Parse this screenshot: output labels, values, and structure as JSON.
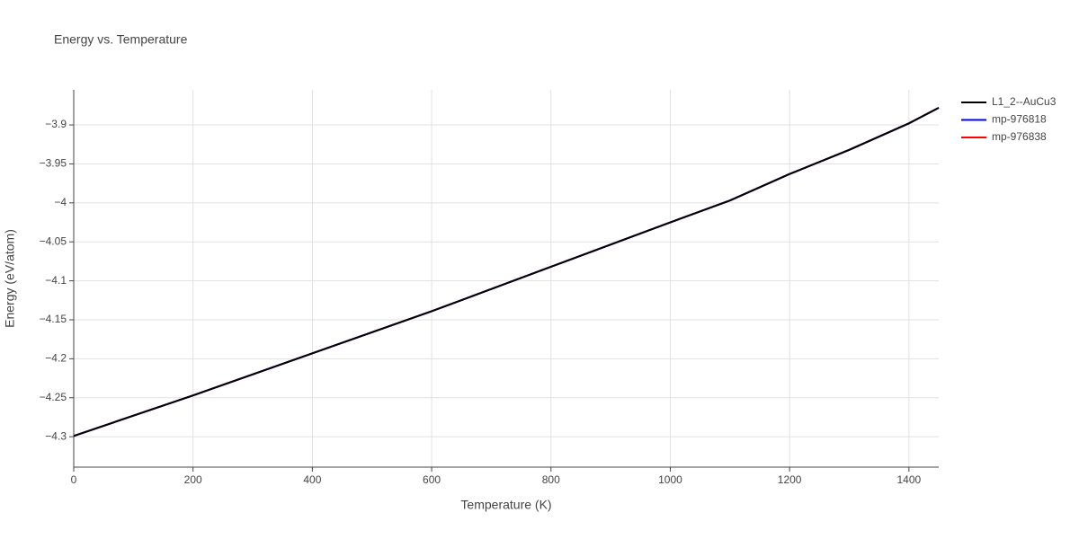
{
  "chart_data": {
    "type": "line",
    "title": "Energy vs. Temperature",
    "x_label": "Temperature (K)",
    "y_label": "Energy (eV/atom)",
    "x": [
      0,
      200,
      400,
      600,
      800,
      1000,
      1100,
      1200,
      1300,
      1400,
      1450
    ],
    "series": [
      {
        "name": "L1_2--AuCu3",
        "color": "#000000",
        "values": [
          -4.299,
          -4.247,
          -4.193,
          -4.139,
          -4.082,
          -4.025,
          -3.997,
          -3.963,
          -3.932,
          -3.898,
          -3.878
        ]
      },
      {
        "name": "mp-976818",
        "color": "#0000ff",
        "values": [
          -4.299,
          -4.247,
          -4.193,
          -4.139,
          -4.082,
          -4.025,
          -3.997,
          -3.963,
          -3.932,
          -3.898,
          -3.878
        ]
      },
      {
        "name": "mp-976838",
        "color": "#ff0000",
        "values": [
          -4.299,
          -4.247,
          -4.193,
          -4.139,
          -4.082,
          -4.025,
          -3.997,
          -3.963,
          -3.932,
          -3.898,
          -3.878
        ]
      }
    ],
    "xlim": [
      0,
      1450
    ],
    "xticks": [
      0,
      200,
      400,
      600,
      800,
      1000,
      1200,
      1400
    ],
    "ylim": [
      -4.339,
      -3.855
    ],
    "yticks": [
      {
        "value": -4.3,
        "label": "−4.3"
      },
      {
        "value": -4.25,
        "label": "−4.25"
      },
      {
        "value": -4.2,
        "label": "−4.2"
      },
      {
        "value": -4.15,
        "label": "−4.15"
      },
      {
        "value": -4.1,
        "label": "−4.1"
      },
      {
        "value": -4.05,
        "label": "−4.05"
      },
      {
        "value": -4,
        "label": "−4"
      },
      {
        "value": -3.95,
        "label": "−3.95"
      },
      {
        "value": -3.9,
        "label": "−3.9"
      }
    ],
    "grid": true,
    "legend": "right"
  }
}
